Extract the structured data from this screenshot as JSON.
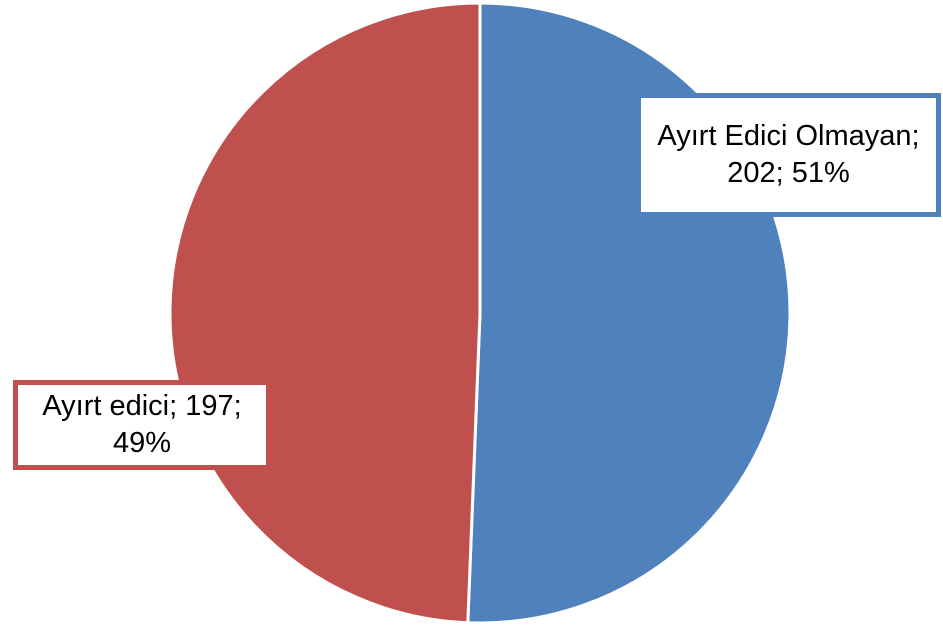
{
  "chart_data": {
    "type": "pie",
    "title": "",
    "slices": [
      {
        "label": "Ayırt edici",
        "value": 197,
        "percent": 49,
        "color": "#C0504D",
        "label_lines": [
          "Ayırt edici; 197;",
          "49%"
        ]
      },
      {
        "label": "Ayırt Edici Olmayan",
        "value": 202,
        "percent": 51,
        "color": "#4F81BD",
        "label_lines": [
          "Ayırt Edici Olmayan;",
          "202; 51%"
        ]
      }
    ]
  }
}
